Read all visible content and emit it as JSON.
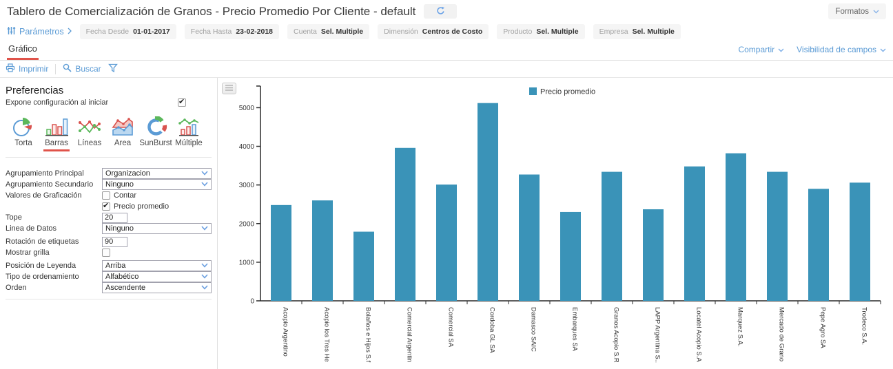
{
  "header": {
    "title": "Tablero de Comercialización de Granos - Precio Promedio Por Cliente - default",
    "formatos_label": "Formatos"
  },
  "params": {
    "label": "Parámetros",
    "chips": [
      {
        "label": "Fecha Desde",
        "value": "01-01-2017"
      },
      {
        "label": "Fecha Hasta",
        "value": "23-02-2018"
      },
      {
        "label": "Cuenta",
        "value": "Sel. Multiple"
      },
      {
        "label": "Dimensión",
        "value": "Centros de Costo"
      },
      {
        "label": "Producto",
        "value": "Sel. Multiple"
      },
      {
        "label": "Empresa",
        "value": "Sel. Multiple"
      }
    ]
  },
  "tabs": {
    "active": "Gráfico"
  },
  "links": {
    "compartir": "Compartir",
    "visibilidad": "Visibilidad de campos"
  },
  "toolbar": {
    "imprimir": "Imprimir",
    "buscar": "Buscar"
  },
  "prefs": {
    "title": "Preferencias",
    "expose_label": "Expone configuración al iniciar",
    "expose_checked": true,
    "chart_types": [
      {
        "label": "Torta",
        "icon": "pie-chart-icon",
        "selected": false
      },
      {
        "label": "Barras",
        "icon": "bar-chart-icon",
        "selected": true
      },
      {
        "label": "Líneas",
        "icon": "line-chart-icon",
        "selected": false
      },
      {
        "label": "Area",
        "icon": "area-chart-icon",
        "selected": false
      },
      {
        "label": "SunBurst",
        "icon": "sunburst-chart-icon",
        "selected": false
      },
      {
        "label": "Múltiple",
        "icon": "multi-chart-icon",
        "selected": false
      }
    ],
    "fields": {
      "agrupamiento_principal": {
        "label": "Agrupamiento Principal",
        "value": "Organizacion"
      },
      "agrupamiento_secundario": {
        "label": "Agrupamiento Secundario",
        "value": "Ninguno"
      },
      "valores_label": "Valores de Graficación",
      "contar": {
        "label": "Contar",
        "checked": false
      },
      "precio_promedio": {
        "label": "Precio promedio",
        "checked": true
      },
      "tope": {
        "label": "Tope",
        "value": "20"
      },
      "linea_datos": {
        "label": "Linea de Datos",
        "value": "Ninguno"
      },
      "rotacion": {
        "label": "Rotación de etiquetas",
        "value": "90"
      },
      "mostrar_grilla": {
        "label": "Mostrar grilla",
        "checked": false
      },
      "posicion_leyenda": {
        "label": "Posición de Leyenda",
        "value": "Arriba"
      },
      "tipo_ordenamiento": {
        "label": "Tipo de ordenamiento",
        "value": "Alfabético"
      },
      "orden": {
        "label": "Orden",
        "value": "Ascendente"
      }
    }
  },
  "chart_data": {
    "type": "bar",
    "title": "",
    "legend": [
      "Precio promedio"
    ],
    "legend_position": "top",
    "series_color": "#3a93b8",
    "categories": [
      "Acopio Argentino",
      "Acopio los Tres He",
      "Bolaños e Hijos S.f",
      "Comercial Argentin",
      "Comercial SA",
      "Cordoba GL SA",
      "Damasco SAIC",
      "Embarques SA",
      "Granos Acopio S.R",
      "LAPP Argentina S..",
      "Locatel Acopio S.A",
      "Marquez S.A.",
      "Mercado de Grano",
      "Pepe Agro SA",
      "Trodeco S.A."
    ],
    "values": [
      2480,
      2600,
      1790,
      3960,
      3010,
      5120,
      3270,
      2300,
      3340,
      2370,
      3480,
      3820,
      3340,
      2900,
      3060
    ],
    "xlabel": "",
    "ylabel": "",
    "ylim": [
      0,
      5560
    ],
    "yticks": [
      0,
      1000,
      2000,
      3000,
      4000,
      5000
    ],
    "grid": false,
    "label_rotation": 90
  }
}
